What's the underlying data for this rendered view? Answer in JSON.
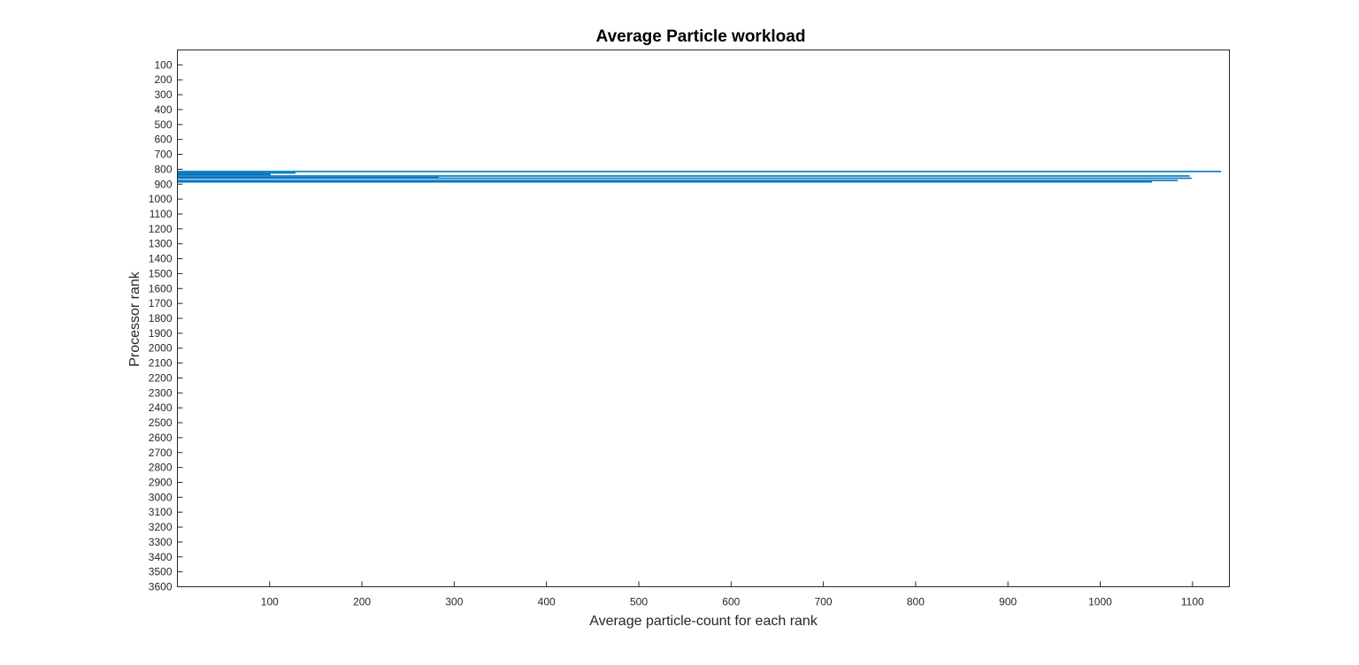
{
  "chart_data": {
    "type": "bar",
    "orientation": "horizontal",
    "title": "Average Particle workload",
    "xlabel": "Average particle-count for each rank",
    "ylabel": "Processor rank",
    "xlim": [
      0,
      1140
    ],
    "ylim": [
      0,
      3600
    ],
    "y_reversed": true,
    "grid": false,
    "legend": "none",
    "bar_color": "#0072BD",
    "x_ticks": [
      100,
      200,
      300,
      400,
      500,
      600,
      700,
      800,
      900,
      1000,
      1100
    ],
    "y_ticks": [
      100,
      200,
      300,
      400,
      500,
      600,
      700,
      800,
      900,
      1000,
      1100,
      1200,
      1300,
      1400,
      1500,
      1600,
      1700,
      1800,
      1900,
      2000,
      2100,
      2200,
      2300,
      2400,
      2500,
      2600,
      2700,
      2800,
      2900,
      3000,
      3100,
      3200,
      3300,
      3400,
      3500,
      3600
    ],
    "bars": [
      {
        "rank": 815,
        "value": 1131
      },
      {
        "rank": 825,
        "value": 128
      },
      {
        "rank": 835,
        "value": 101
      },
      {
        "rank": 845,
        "value": 1097
      },
      {
        "rank": 855,
        "value": 283
      },
      {
        "rank": 860,
        "value": 1099
      },
      {
        "rank": 875,
        "value": 1084
      },
      {
        "rank": 885,
        "value": 1056
      }
    ]
  }
}
